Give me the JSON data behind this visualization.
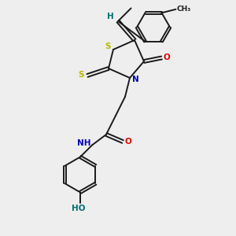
{
  "bg_color": "#eeeeee",
  "bond_color": "#1a1a1a",
  "S_color": "#b8b800",
  "N_color": "#0000cc",
  "O_color": "#ee0000",
  "H_color": "#007070",
  "figsize": [
    3.0,
    3.0
  ],
  "dpi": 100,
  "xlim": [
    0,
    10
  ],
  "ylim": [
    0,
    10
  ]
}
